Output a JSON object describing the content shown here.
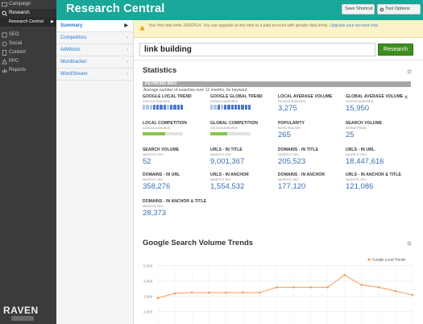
{
  "nav": {
    "items": [
      {
        "label": "Campaign",
        "icon": "campaign-icon"
      },
      {
        "label": "Research",
        "icon": "research-icon",
        "active": true
      }
    ],
    "sub_item": "Research Central",
    "items2": [
      {
        "label": "SEO",
        "icon": "seo-icon"
      },
      {
        "label": "Social",
        "icon": "social-icon"
      },
      {
        "label": "Content",
        "icon": "content-icon"
      },
      {
        "label": "PPC",
        "icon": "ppc-icon"
      },
      {
        "label": "Reports",
        "icon": "reports-icon"
      }
    ],
    "logo": "RAVEN"
  },
  "header": {
    "title": "Research Central",
    "save_label": "Save Shortcut",
    "tool_label": "Tool Options"
  },
  "subnav": [
    "Summary",
    "Competitors",
    "AdWords",
    "Wordtracker",
    "WordStream"
  ],
  "notice": {
    "text": "Your free trial ends 3/06/2014. You can upgrade at any time to a paid account with greater data limits.",
    "link": "Upgrade your account now."
  },
  "search": {
    "value": "link building",
    "button": "Research"
  },
  "statistics": {
    "title": "Statistics",
    "keyword_info": "KEYWORD INFO",
    "keyword_sub": "Average number of searches over 12 months, for keyword.",
    "local_trend": {
      "label": "GOOGLE LOCAL TREND",
      "sub": "GOOGLE ADWORDS",
      "bars": [
        0.5,
        0.6,
        0.5,
        0.7,
        0.8,
        1,
        0.7,
        0.6,
        0.9,
        0.7,
        0.8,
        1
      ]
    },
    "global_trend": {
      "label": "GOOGLE GLOBAL TREND",
      "sub": "GOOGLE ADWORDS",
      "bars": [
        0.6,
        0.5,
        0.7,
        0.6,
        0.8,
        0.9,
        0.7,
        0.8,
        1,
        0.7,
        0.8,
        0.9
      ]
    },
    "metrics_row1": [
      {
        "label": "LOCAL AVERAGE VOLUME",
        "sub": "GOOGLE ADWORDS",
        "value": "3,275"
      },
      {
        "label": "GLOBAL AVERAGE VOLUME",
        "sub": "GOOGLE ADWORDS",
        "value": "15,950"
      }
    ],
    "local_comp": {
      "label": "LOCAL COMPETITION",
      "sub": "GOOGLE ADWORDS",
      "fill": 0.55
    },
    "global_comp": {
      "label": "GLOBAL COMPETITION",
      "sub": "GOOGLE ADWORDS",
      "fill": 0.42
    },
    "metrics_row2": [
      {
        "label": "POPULARITY",
        "sub": "WORDTRACKER",
        "value": "265"
      },
      {
        "label": "SEARCH VOLUME",
        "sub": "WORDSTREAM",
        "value": "25"
      }
    ],
    "grid": [
      {
        "label": "SEARCH VOLUME",
        "sub": "MAJESTIC SEO",
        "value": "52"
      },
      {
        "label": "URLS - IN TITLE",
        "sub": "MAJESTIC SEO",
        "value": "9,001,367"
      },
      {
        "label": "DOMAINS - IN TITLE",
        "sub": "MAJESTIC SEO",
        "value": "205,523"
      },
      {
        "label": "URLS - IN URL",
        "sub": "MAJESTIC SEO",
        "value": "18,447,616"
      },
      {
        "label": "DOMAINS - IN URL",
        "sub": "MAJESTIC SEO",
        "value": "358,276"
      },
      {
        "label": "URLS - IN ANCHOR",
        "sub": "MAJESTIC SEO",
        "value": "1,554,532"
      },
      {
        "label": "DOMAINS - IN ANCHOR",
        "sub": "MAJESTIC SEO",
        "value": "177,120"
      },
      {
        "label": "URLS - IN ANCHOR & TITLE",
        "sub": "MAJESTIC SEO",
        "value": "121,086"
      },
      {
        "label": "DOMAINS - IN ANCHOR & TITLE",
        "sub": "MAJESTIC SEO",
        "value": "28,373"
      }
    ]
  },
  "trends_title": "Google Search Volume Trends",
  "chart_data": {
    "type": "line",
    "title": "",
    "series": [
      {
        "name": "Google Local Trends",
        "values": [
          2900,
          3200,
          3250,
          3250,
          3250,
          3250,
          3250,
          3600,
          3600,
          3600,
          3600,
          4400,
          3750,
          3600,
          3350,
          3100
        ]
      }
    ],
    "yticks": [
      "5,000",
      "4,000",
      "3,000",
      "2,000"
    ],
    "ylim": [
      1200,
      5200
    ],
    "legend": "top-right",
    "color": "#f59a5a"
  }
}
